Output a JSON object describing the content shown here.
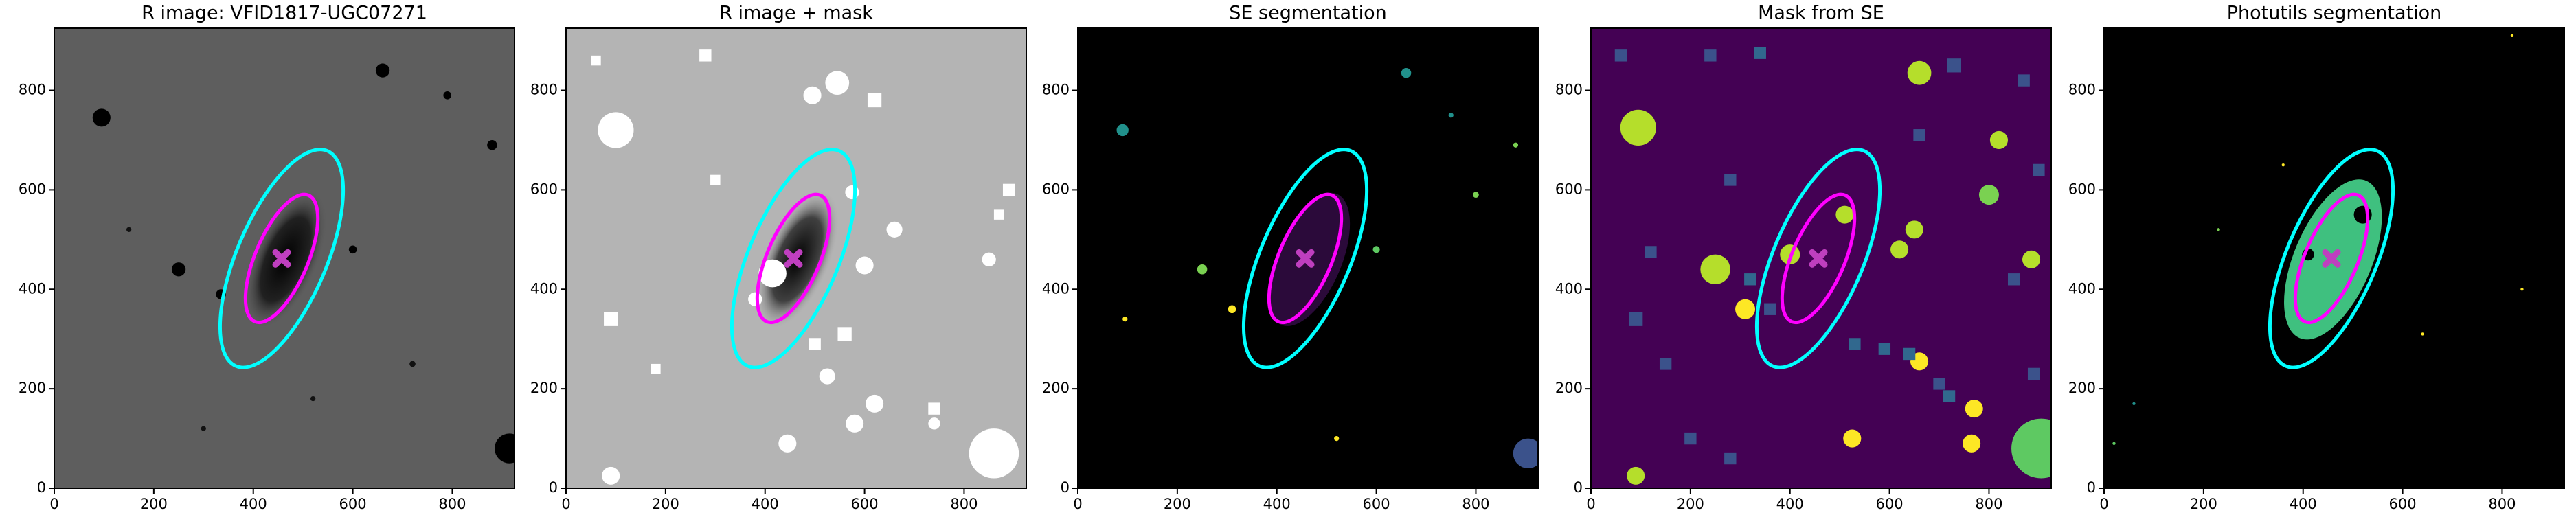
{
  "chart_data": [
    {
      "type": "image",
      "title": "R image: VFID1817-UGC07271",
      "background": "#5e5e5e",
      "xlim": [
        0,
        925
      ],
      "ylim": [
        0,
        925
      ],
      "xticks": [
        0,
        200,
        400,
        600,
        800
      ],
      "yticks": [
        0,
        200,
        400,
        600,
        800
      ],
      "ellipses": [
        {
          "center": [
            457,
            462
          ],
          "a": 235,
          "b": 90,
          "angle": 67,
          "color": "#00ffff"
        },
        {
          "center": [
            457,
            462
          ],
          "a": 138,
          "b": 53,
          "angle": 67,
          "color": "#ff00ff"
        }
      ],
      "marker": {
        "x": 457,
        "y": 462,
        "color": "#bf3fbf"
      }
    },
    {
      "type": "image",
      "title": "R image + mask",
      "background": "#b4b4b4",
      "xlim": [
        0,
        925
      ],
      "ylim": [
        0,
        925
      ],
      "xticks": [
        0,
        200,
        400,
        600,
        800
      ],
      "yticks": [
        0,
        200,
        400,
        600,
        800
      ],
      "ellipses": [
        {
          "center": [
            457,
            462
          ],
          "a": 235,
          "b": 90,
          "angle": 67,
          "color": "#00ffff"
        },
        {
          "center": [
            457,
            462
          ],
          "a": 138,
          "b": 53,
          "angle": 67,
          "color": "#ff00ff"
        }
      ],
      "marker": {
        "x": 457,
        "y": 462,
        "color": "#bf3fbf"
      }
    },
    {
      "type": "image",
      "title": "SE segmentation",
      "background": "#000000",
      "xlim": [
        0,
        925
      ],
      "ylim": [
        0,
        925
      ],
      "xticks": [
        0,
        200,
        400,
        600,
        800
      ],
      "yticks": [
        0,
        200,
        400,
        600,
        800
      ],
      "ellipses": [
        {
          "center": [
            457,
            462
          ],
          "a": 235,
          "b": 90,
          "angle": 67,
          "color": "#00ffff"
        },
        {
          "center": [
            457,
            462
          ],
          "a": 138,
          "b": 53,
          "angle": 67,
          "color": "#ff00ff"
        }
      ],
      "marker": {
        "x": 457,
        "y": 462,
        "color": "#bf3fbf"
      }
    },
    {
      "type": "image",
      "title": "Mask from SE",
      "background": "#440154",
      "xlim": [
        0,
        925
      ],
      "ylim": [
        0,
        925
      ],
      "xticks": [
        0,
        200,
        400,
        600,
        800
      ],
      "yticks": [
        0,
        200,
        400,
        600,
        800
      ],
      "ellipses": [
        {
          "center": [
            457,
            462
          ],
          "a": 235,
          "b": 90,
          "angle": 67,
          "color": "#00ffff"
        },
        {
          "center": [
            457,
            462
          ],
          "a": 138,
          "b": 53,
          "angle": 67,
          "color": "#ff00ff"
        }
      ],
      "marker": {
        "x": 457,
        "y": 462,
        "color": "#bf3fbf"
      }
    },
    {
      "type": "image",
      "title": "Photutils segmentation",
      "background": "#000000",
      "xlim": [
        0,
        925
      ],
      "ylim": [
        0,
        925
      ],
      "xticks": [
        0,
        200,
        400,
        600,
        800
      ],
      "yticks": [
        0,
        200,
        400,
        600,
        800
      ],
      "ellipses": [
        {
          "center": [
            457,
            462
          ],
          "a": 235,
          "b": 90,
          "angle": 67,
          "color": "#00ffff"
        },
        {
          "center": [
            457,
            462
          ],
          "a": 138,
          "b": 53,
          "angle": 67,
          "color": "#ff00ff"
        }
      ],
      "marker": {
        "x": 457,
        "y": 462,
        "color": "#bf3fbf"
      }
    }
  ]
}
